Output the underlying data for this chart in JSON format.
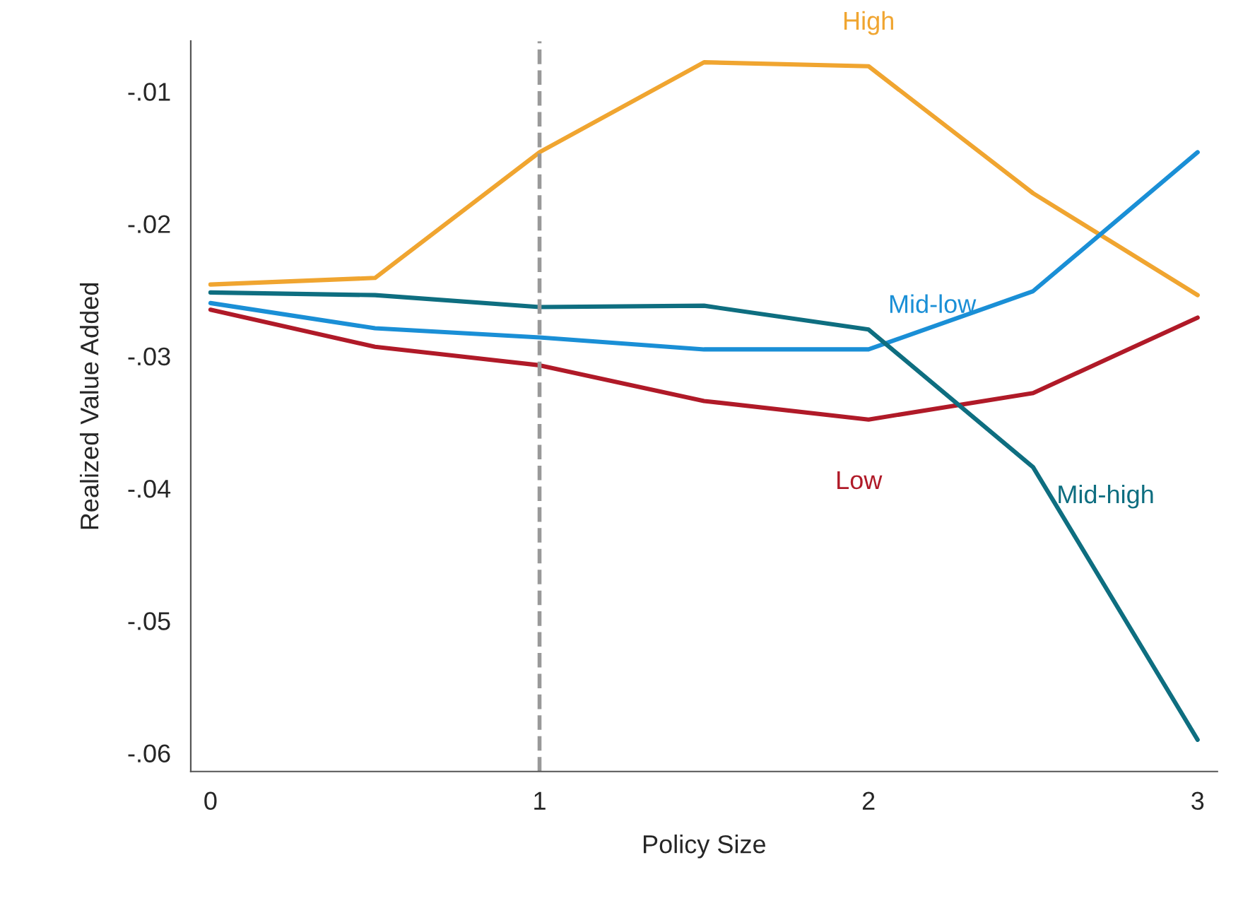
{
  "chart_data": {
    "type": "line",
    "xlabel": "Policy Size",
    "ylabel": "Realized Value Added",
    "x": [
      0,
      0.5,
      1,
      1.5,
      2,
      2.5,
      3
    ],
    "series": [
      {
        "name": "High",
        "color": "#f0a530",
        "values": [
          -0.0246,
          -0.0241,
          -0.0146,
          -0.0078,
          -0.0081,
          -0.0177,
          -0.0254
        ]
      },
      {
        "name": "Mid-low",
        "color": "#1a8fd6",
        "values": [
          -0.026,
          -0.0279,
          -0.0286,
          -0.0295,
          -0.0295,
          -0.0251,
          -0.0146
        ]
      },
      {
        "name": "Low",
        "color": "#b01a28",
        "values": [
          -0.0265,
          -0.0293,
          -0.0307,
          -0.0334,
          -0.0348,
          -0.0328,
          -0.0271
        ]
      },
      {
        "name": "Mid-high",
        "color": "#0e6e80",
        "values": [
          -0.0252,
          -0.0254,
          -0.0263,
          -0.0262,
          -0.028,
          -0.0384,
          -0.059
        ]
      }
    ],
    "xlim": [
      -0.06,
      3.06
    ],
    "ylim": [
      -0.0614,
      -0.0062
    ],
    "xticks": [
      0,
      1,
      2,
      3
    ],
    "yticks": [
      {
        "value": -0.01,
        "label": "-.01"
      },
      {
        "value": -0.02,
        "label": "-.02"
      },
      {
        "value": -0.03,
        "label": "-.03"
      },
      {
        "value": -0.04,
        "label": "-.04"
      },
      {
        "value": -0.05,
        "label": "-.05"
      },
      {
        "value": -0.06,
        "label": "-.06"
      }
    ],
    "ref_lines": [
      {
        "axis": "x",
        "value": 1,
        "label": null,
        "color": "#999999",
        "line_style": "dashed"
      }
    ],
    "grid": false,
    "legend": false,
    "line_style": "solid",
    "marker": "none"
  }
}
